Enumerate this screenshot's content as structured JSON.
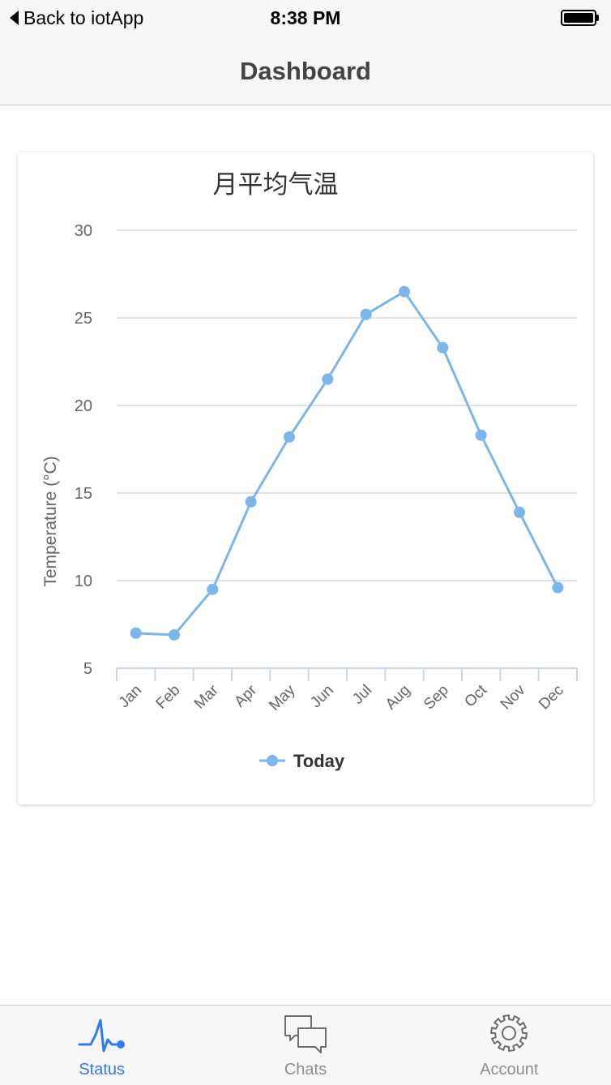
{
  "status_bar": {
    "back_label": "Back to iotApp",
    "time": "8:38 PM"
  },
  "nav": {
    "title": "Dashboard"
  },
  "colors": {
    "series": "#7cb5ec",
    "active_tab": "#3478f6",
    "inactive_tab": "#8e8e93"
  },
  "chart_data": {
    "type": "line",
    "title": "月平均气温",
    "ylabel": "Temperature (°C)",
    "xlabel": "",
    "categories": [
      "Jan",
      "Feb",
      "Mar",
      "Apr",
      "May",
      "Jun",
      "Jul",
      "Aug",
      "Sep",
      "Oct",
      "Nov",
      "Dec"
    ],
    "ylim": [
      5,
      30
    ],
    "yticks": [
      5,
      10,
      15,
      20,
      25,
      30
    ],
    "grid": true,
    "legend_position": "bottom",
    "series": [
      {
        "name": "Today",
        "values": [
          7.0,
          6.9,
          9.5,
          14.5,
          18.2,
          21.5,
          25.2,
          26.5,
          23.3,
          18.3,
          13.9,
          9.6
        ]
      }
    ]
  },
  "tabs": [
    {
      "label": "Status",
      "icon": "pulse-icon",
      "active": true
    },
    {
      "label": "Chats",
      "icon": "chat-bubbles-icon",
      "active": false
    },
    {
      "label": "Account",
      "icon": "gear-icon",
      "active": false
    }
  ]
}
